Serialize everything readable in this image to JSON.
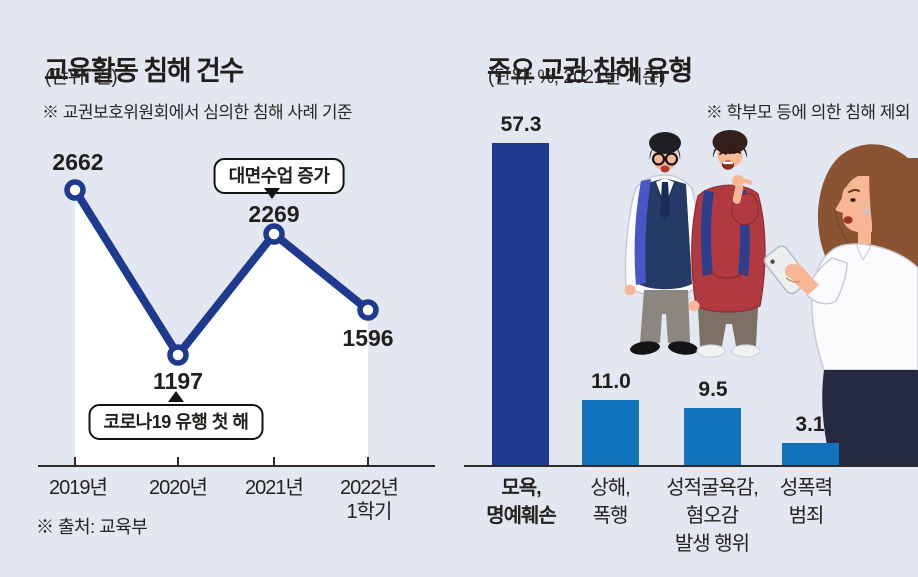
{
  "colors": {
    "background": "#e2e7f1",
    "navy": "#1d3a8f",
    "blue": "#1173bc",
    "axis": "#2e2b28",
    "text": "#221e1b"
  },
  "left_panel": {
    "title": "교육활동 침해 건수",
    "unit": "(단위: 건)",
    "note": "※ 교권보호위원회에서 심의한 침해 사례 기준",
    "source": "※ 출처: 교육부",
    "value_labels": [
      "2662",
      "1197",
      "2269",
      "1596"
    ],
    "x_labels": [
      "2019년",
      "2020년",
      "2021년",
      "2022년"
    ],
    "x_label_second_line": "1학기",
    "callout_top": "대면수업 증가",
    "callout_bottom": "코로나19 유행 첫 해"
  },
  "right_panel": {
    "title": "주요 교권 침해 유형",
    "unit": "(단위: %, 2021년 기준)",
    "note": "※ 학부모 등에 의한 침해 제외",
    "value_labels": [
      "57.3",
      "11.0",
      "9.5",
      "3.1"
    ],
    "category_lines": [
      [
        "모욕,",
        "명예훼손"
      ],
      [
        "상해,",
        "폭행"
      ],
      [
        "성적굴욕감,",
        "혐오감",
        "발생 행위"
      ],
      [
        "성폭력",
        "범죄"
      ]
    ]
  },
  "illustration": {
    "description": "두 남학생이 웃으며 손가락질하고, 여교사가 휴대전화를 보며 눈물 흘리는 모습"
  },
  "chart_data": [
    {
      "type": "line",
      "title": "교육활동 침해 건수",
      "unit_label": "(단위: 건)",
      "note": "※ 교권보호위원회에서 심의한 침해 사례 기준",
      "source": "※ 출처: 교육부",
      "x": [
        "2019년",
        "2020년",
        "2021년",
        "2022년 1학기"
      ],
      "values": [
        2662,
        1197,
        2269,
        1596
      ],
      "annotations": [
        {
          "text": "대면수업 증가",
          "target": "2021년",
          "value": 2269
        },
        {
          "text": "코로나19 유행 첫 해",
          "target": "2020년",
          "value": 1197
        }
      ],
      "line_color": "#1d3a8f",
      "marker": "open-circle",
      "area_fill": "#ffffff",
      "grid": false,
      "y_axis_shown": false
    },
    {
      "type": "bar",
      "title": "주요 교권 침해 유형",
      "unit_label": "(단위: %, 2021년 기준)",
      "note": "※ 학부모 등에 의한 침해 제외",
      "categories": [
        "모욕, 명예훼손",
        "상해, 폭행",
        "성적굴욕감, 혐오감 발생 행위",
        "성폭력 범죄"
      ],
      "values": [
        57.3,
        11.0,
        9.5,
        3.1
      ],
      "bar_colors": [
        "#1d3a8f",
        "#1173bc",
        "#1173bc",
        "#1173bc"
      ],
      "grid": false,
      "y_axis_shown": false
    }
  ]
}
